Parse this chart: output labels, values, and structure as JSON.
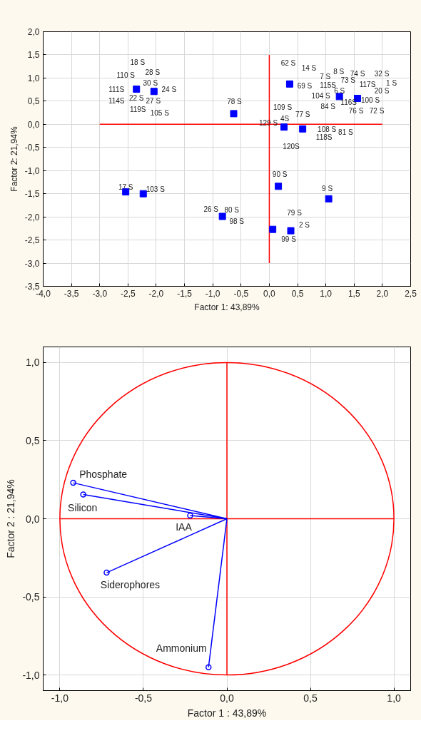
{
  "chart_data": [
    {
      "type": "scatter",
      "xlabel": "Factor 1: 43,89%",
      "ylabel": "Factor 2: 21,94%",
      "xlim": [
        -4,
        2.5
      ],
      "ylim": [
        -3.5,
        2.0
      ],
      "xticks": [
        {
          "value": -4,
          "label": "-4,0"
        },
        {
          "value": -3.5,
          "label": "-3,5"
        },
        {
          "value": -3,
          "label": "-3,0"
        },
        {
          "value": -2.5,
          "label": "-2,5"
        },
        {
          "value": -2,
          "label": "-2,0"
        },
        {
          "value": -1.5,
          "label": "-1,5"
        },
        {
          "value": -1,
          "label": "-1,0"
        },
        {
          "value": -0.5,
          "label": "-0,5"
        },
        {
          "value": 0,
          "label": "0,0"
        },
        {
          "value": 0.5,
          "label": "0,5"
        },
        {
          "value": 1,
          "label": "1,0"
        },
        {
          "value": 1.5,
          "label": "1,5"
        },
        {
          "value": 2,
          "label": "2,0"
        },
        {
          "value": 2.5,
          "label": "2,5"
        }
      ],
      "yticks": [
        {
          "value": -3.5,
          "label": "-3,5"
        },
        {
          "value": -3,
          "label": "-3,0"
        },
        {
          "value": -2.5,
          "label": "-2,5"
        },
        {
          "value": -2,
          "label": "-2,0"
        },
        {
          "value": -1.5,
          "label": "-1,5"
        },
        {
          "value": -1,
          "label": "-1,0"
        },
        {
          "value": -0.5,
          "label": "-0,5"
        },
        {
          "value": 0,
          "label": "0,0"
        },
        {
          "value": 0.5,
          "label": "0,5"
        },
        {
          "value": 1,
          "label": "1,0"
        },
        {
          "value": 1.5,
          "label": "1,5"
        },
        {
          "value": 2,
          "label": "2,0"
        }
      ],
      "grid": true,
      "marker": "square",
      "series": [
        {
          "type": "line",
          "color": "#ff0000",
          "marker": "none",
          "x": [
            -3,
            2
          ],
          "values": [
            0,
            0
          ]
        },
        {
          "type": "line",
          "color": "#ff0000",
          "marker": "none",
          "x": [
            0,
            0
          ],
          "values": [
            -3,
            1.5
          ]
        },
        {
          "color": "#0000ff",
          "x": [
            -2.35,
            -2.04,
            -2.54,
            -2.23,
            -0.63,
            -0.83,
            0.36,
            1.24,
            1.56,
            0.26,
            0.59,
            0.16,
            1.05,
            0.06,
            0.38
          ],
          "values": [
            0.76,
            0.71,
            -1.46,
            -1.5,
            0.23,
            -1.99,
            0.87,
            0.6,
            0.56,
            -0.06,
            -0.1,
            -1.34,
            -1.61,
            -2.27,
            -2.3
          ]
        }
      ],
      "annotations": [
        "18 S",
        {
          "text": "110 S",
          "x": -2.35,
          "y": 0.76
        },
        {
          "text": "28 S",
          "x": -2.04,
          "y": 0.71
        },
        {
          "text": "30 S",
          "x": -2.04,
          "y": 0.71
        },
        {
          "text": "111S",
          "x": -2.35,
          "y": 0.76
        },
        {
          "text": "24 S",
          "x": -2.04,
          "y": 0.71
        },
        {
          "text": "22 S",
          "x": -2.35,
          "y": 0.76
        },
        {
          "text": "27 S",
          "x": -2.04,
          "y": 0.71
        },
        {
          "text": "114S",
          "x": -2.35,
          "y": 0.76
        },
        {
          "text": "119S",
          "x": -2.35,
          "y": 0.76
        },
        {
          "text": "105 S",
          "x": -2.04,
          "y": 0.71
        },
        {
          "text": "17 S",
          "x": -2.54,
          "y": -1.46
        },
        {
          "text": "103 S",
          "x": -2.23,
          "y": -1.5
        },
        {
          "text": "26 S",
          "x": -0.83,
          "y": -1.99
        },
        {
          "text": "78 S",
          "x": -0.63,
          "y": 0.23
        },
        {
          "text": "80 S",
          "x": -0.83,
          "y": -1.99
        },
        {
          "text": "98 S",
          "x": -0.83,
          "y": -1.99
        },
        {
          "text": "62 S",
          "x": 0.36,
          "y": 0.87
        },
        {
          "text": "14 S",
          "x": 0.36,
          "y": 0.87
        },
        {
          "text": "7 S",
          "x": 1.24,
          "y": 0.6
        },
        {
          "text": "8 S",
          "x": 1.24,
          "y": 0.6
        },
        "74 S",
        "32 S",
        {
          "text": "73 S",
          "x": 1.24,
          "y": 0.6
        },
        {
          "text": "69 S",
          "x": 0.36,
          "y": 0.87
        },
        {
          "text": "115S",
          "x": 1.24,
          "y": 0.6
        },
        {
          "text": "117S",
          "x": 1.56,
          "y": 0.56
        },
        "1 S",
        {
          "text": "6 S",
          "x": 1.24,
          "y": 0.6
        },
        {
          "text": "20 S",
          "x": 1.56,
          "y": 0.56
        },
        {
          "text": "104 S",
          "x": 1.24,
          "y": 0.6
        },
        {
          "text": "116S",
          "x": 1.24,
          "y": 0.6
        },
        {
          "text": "100 S",
          "x": 1.56,
          "y": 0.56
        },
        {
          "text": "84 S",
          "x": 1.24,
          "y": 0.6
        },
        {
          "text": "76 S",
          "x": 1.56,
          "y": 0.56
        },
        {
          "text": "72 S",
          "x": 1.56,
          "y": 0.56
        },
        {
          "text": "109 S",
          "x": 0.26,
          "y": -0.06
        },
        {
          "text": "77 S",
          "x": 0.59,
          "y": -0.1
        },
        {
          "text": "4S",
          "x": 0.26,
          "y": -0.06
        },
        {
          "text": "129 S",
          "x": 0.26,
          "y": -0.06
        },
        {
          "text": "108 S",
          "x": 0.59,
          "y": -0.1
        },
        "81 S",
        {
          "text": "118S",
          "x": 0.59,
          "y": -0.1
        },
        {
          "text": "120S",
          "x": 0.26,
          "y": -0.06
        },
        {
          "text": "90 S",
          "x": 0.16,
          "y": -1.34
        },
        {
          "text": "9 S",
          "x": 1.05,
          "y": -1.61
        },
        {
          "text": "79 S",
          "x": 0.38,
          "y": -2.3
        },
        {
          "text": "2 S",
          "x": 0.38,
          "y": -2.3
        },
        {
          "text": "99 S",
          "x": 0.38,
          "y": -2.3
        }
      ]
    },
    {
      "type": "line",
      "xlabel": "Factor 1 : 43,89%",
      "ylabel": "Factor 2 : 21,94%",
      "xlim": [
        -1.1,
        1.1
      ],
      "ylim": [
        -1.1,
        1.1
      ],
      "xticks": [
        {
          "value": -1,
          "label": "-1,0"
        },
        {
          "value": -0.5,
          "label": "-0,5"
        },
        {
          "value": 0,
          "label": "0,0"
        },
        {
          "value": 0.5,
          "label": "0,5"
        },
        {
          "value": 1,
          "label": "1,0"
        }
      ],
      "yticks": [
        {
          "value": -1,
          "label": "-1,0"
        },
        {
          "value": -0.5,
          "label": "-0,5"
        },
        {
          "value": 0,
          "label": "0,0"
        },
        {
          "value": 0.5,
          "label": "0,5"
        },
        {
          "value": 1,
          "label": "1,0"
        }
      ],
      "grid": true,
      "series": [
        {
          "color": "#ff0000",
          "marker": "none",
          "x": [
            -1,
            1
          ],
          "values": [
            0,
            0
          ]
        },
        {
          "color": "#ff0000",
          "marker": "none",
          "x": [
            0,
            0
          ],
          "values": [
            -1,
            1
          ]
        },
        {
          "color": "#0000ff",
          "marker": "circle",
          "x": [
            0,
            -0.92
          ],
          "values": [
            0,
            0.23
          ]
        },
        {
          "color": "#0000ff",
          "marker": "circle",
          "x": [
            0,
            -0.86
          ],
          "values": [
            0,
            0.155
          ]
        },
        {
          "color": "#0000ff",
          "marker": "circle",
          "x": [
            0,
            -0.22
          ],
          "values": [
            0,
            0.02
          ]
        },
        {
          "color": "#0000ff",
          "marker": "circle",
          "x": [
            0,
            -0.72
          ],
          "values": [
            0,
            -0.345
          ]
        },
        {
          "color": "#0000ff",
          "marker": "circle",
          "x": [
            0,
            -0.11
          ],
          "values": [
            0,
            -0.95
          ]
        }
      ],
      "annotations": [
        {
          "text": "Phosphate",
          "x": -0.92,
          "y": 0.23
        },
        {
          "text": "Silicon",
          "x": -0.86,
          "y": 0.155
        },
        {
          "text": "IAA",
          "x": -0.22,
          "y": 0.02
        },
        {
          "text": "Siderophores",
          "x": -0.72,
          "y": -0.345
        },
        {
          "text": "Ammonium",
          "x": -0.11,
          "y": -0.95
        }
      ]
    }
  ]
}
